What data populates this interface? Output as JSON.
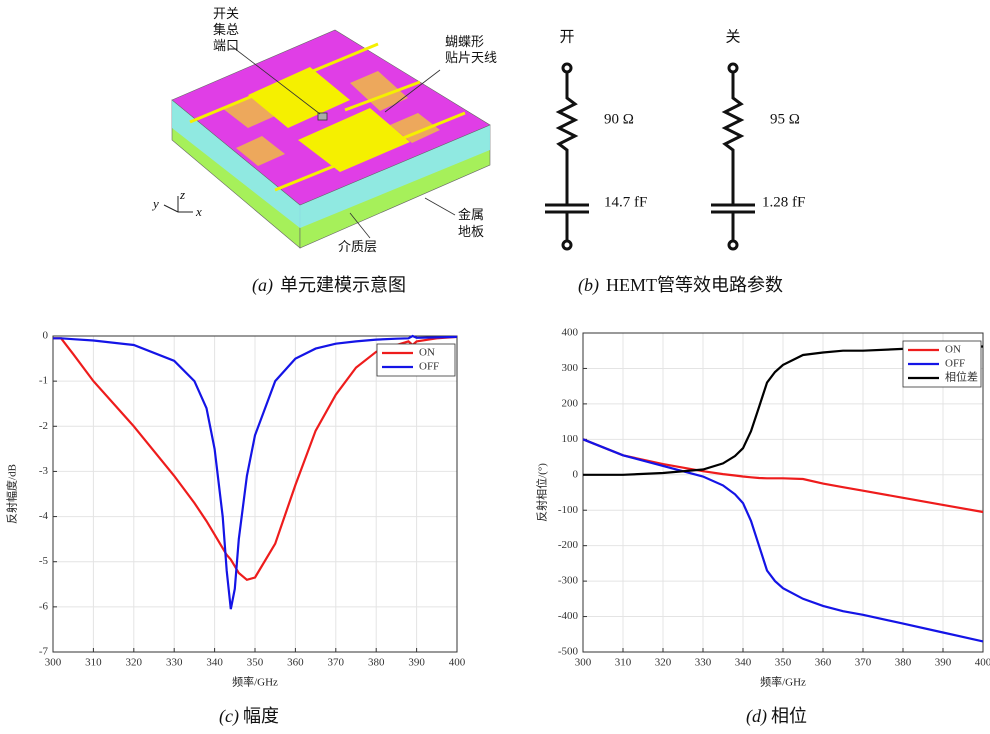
{
  "figure": {
    "a": {
      "labels": {
        "port": [
          "开关",
          "集总",
          "端口"
        ],
        "antenna": [
          "蝴蝶形",
          "贴片天线"
        ],
        "ground": [
          "金属",
          "地板"
        ],
        "substrate": "介质层",
        "axis_y": "y",
        "axis_z": "z",
        "axis_x": "x"
      },
      "caption": {
        "label": "(a)",
        "text": "单元建模示意图"
      }
    },
    "b": {
      "on": {
        "title": "开",
        "resistance": "90 Ω",
        "capacitance": "14.7 fF"
      },
      "off": {
        "title": "关",
        "resistance": "95 Ω",
        "capacitance": "1.28 fF"
      },
      "caption": {
        "label": "(b)",
        "text": "HEMT管等效电路参数"
      }
    }
  },
  "chart_data": [
    {
      "type": "line",
      "xlabel": "频率/GHz",
      "ylabel": "反射幅度/dB",
      "caption": {
        "label": "(c)",
        "text": "幅度"
      },
      "x": [
        300,
        302,
        305,
        310,
        320,
        330,
        335,
        338,
        340,
        342,
        343,
        344,
        345,
        346,
        348,
        350,
        355,
        360,
        365,
        370,
        375,
        380,
        385,
        388,
        389,
        390,
        395,
        400
      ],
      "series": [
        {
          "name": "ON",
          "color": "#ee1c1c",
          "values": [
            -0.05,
            -0.05,
            -0.4,
            -1.0,
            -2.0,
            -3.1,
            -3.7,
            -4.1,
            -4.4,
            -4.7,
            -4.85,
            -4.95,
            -5.1,
            -5.25,
            -5.4,
            -5.35,
            -4.6,
            -3.3,
            -2.1,
            -1.3,
            -0.7,
            -0.35,
            -0.2,
            -0.12,
            -0.2,
            -0.12,
            -0.05,
            -0.02
          ]
        },
        {
          "name": "OFF",
          "color": "#1414e6",
          "values": [
            -0.05,
            -0.05,
            -0.07,
            -0.1,
            -0.2,
            -0.55,
            -1.0,
            -1.6,
            -2.5,
            -4.0,
            -5.2,
            -6.05,
            -5.6,
            -4.5,
            -3.1,
            -2.2,
            -1.0,
            -0.5,
            -0.28,
            -0.17,
            -0.12,
            -0.08,
            -0.06,
            -0.05,
            0.0,
            -0.04,
            -0.03,
            -0.02
          ]
        }
      ],
      "xlim": [
        300,
        400
      ],
      "xticks": [
        300,
        310,
        320,
        330,
        340,
        350,
        360,
        370,
        380,
        390,
        400
      ],
      "ylim": [
        -7,
        0
      ],
      "yticks": [
        -7,
        -6,
        -5,
        -4,
        -3,
        -2,
        -1,
        0
      ],
      "grid": true,
      "legend": "upper-right"
    },
    {
      "type": "line",
      "xlabel": "频率/GHz",
      "ylabel": "反射相位/(°)",
      "caption": {
        "label": "(d)",
        "text": "相位"
      },
      "x": [
        300,
        310,
        320,
        330,
        335,
        338,
        340,
        342,
        344,
        346,
        348,
        350,
        355,
        360,
        365,
        370,
        380,
        390,
        400
      ],
      "series": [
        {
          "name": "ON",
          "color": "#ee1c1c",
          "values": [
            100,
            55,
            30,
            10,
            2,
            -2,
            -5,
            -7,
            -9,
            -10,
            -10,
            -10,
            -12,
            -25,
            -35,
            -45,
            -65,
            -85,
            -105
          ]
        },
        {
          "name": "OFF",
          "color": "#1414e6",
          "values": [
            100,
            55,
            25,
            -5,
            -30,
            -55,
            -80,
            -130,
            -200,
            -270,
            -300,
            -320,
            -350,
            -370,
            -385,
            -395,
            -420,
            -445,
            -470
          ]
        },
        {
          "name": "相位差",
          "color": "#000000",
          "values": [
            0,
            0,
            5,
            15,
            32,
            53,
            75,
            123,
            191,
            260,
            290,
            310,
            338,
            345,
            350,
            350,
            355,
            360,
            362
          ]
        }
      ],
      "xlim": [
        300,
        400
      ],
      "xticks": [
        300,
        310,
        320,
        330,
        340,
        350,
        360,
        370,
        380,
        390,
        400
      ],
      "ylim": [
        -500,
        400
      ],
      "yticks": [
        -500,
        -400,
        -300,
        -200,
        -100,
        0,
        100,
        200,
        300,
        400
      ],
      "grid": true,
      "legend": "upper-right"
    }
  ]
}
